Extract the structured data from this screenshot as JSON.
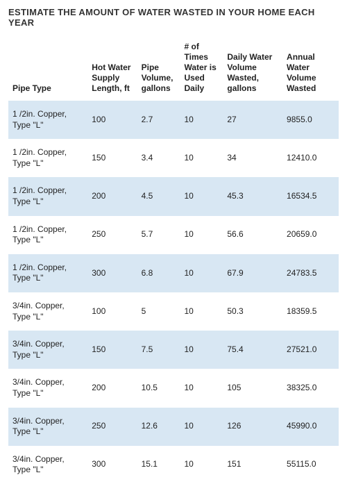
{
  "title": "ESTIMATE THE AMOUNT OF WATER WASTED IN YOUR HOME EACH YEAR",
  "table": {
    "type": "table",
    "background_color": "#ffffff",
    "band_color": "#d8e7f3",
    "text_color": "#222222",
    "header_fontsize": 12,
    "cell_fontsize": 12,
    "columns": [
      {
        "key": "pipe_type",
        "label": "Pipe Type",
        "width_pct": 24
      },
      {
        "key": "supply_len",
        "label": "Hot Water Supply Length, ft",
        "width_pct": 15
      },
      {
        "key": "pipe_vol",
        "label": "Pipe Volume, gallons",
        "width_pct": 13
      },
      {
        "key": "uses_daily",
        "label": "# of Times Water is Used Daily",
        "width_pct": 13
      },
      {
        "key": "daily_wasted",
        "label": "Daily Water Volume Wasted, gallons",
        "width_pct": 18
      },
      {
        "key": "annual_wasted",
        "label": "Annual Water Volume Wasted",
        "width_pct": 17
      }
    ],
    "rows": [
      {
        "pipe_type": "1 /2in. Copper, Type \"L\"",
        "supply_len": "100",
        "pipe_vol": "2.7",
        "uses_daily": "10",
        "daily_wasted": "27",
        "annual_wasted": "9855.0"
      },
      {
        "pipe_type": "1 /2in. Copper, Type \"L\"",
        "supply_len": "150",
        "pipe_vol": "3.4",
        "uses_daily": "10",
        "daily_wasted": "34",
        "annual_wasted": "12410.0"
      },
      {
        "pipe_type": "1 /2in. Copper, Type \"L\"",
        "supply_len": "200",
        "pipe_vol": "4.5",
        "uses_daily": "10",
        "daily_wasted": "45.3",
        "annual_wasted": "16534.5"
      },
      {
        "pipe_type": "1 /2in. Copper, Type \"L\"",
        "supply_len": "250",
        "pipe_vol": "5.7",
        "uses_daily": "10",
        "daily_wasted": "56.6",
        "annual_wasted": "20659.0"
      },
      {
        "pipe_type": "1 /2in. Copper, Type \"L\"",
        "supply_len": "300",
        "pipe_vol": "6.8",
        "uses_daily": "10",
        "daily_wasted": "67.9",
        "annual_wasted": "24783.5"
      },
      {
        "pipe_type": "3/4in. Copper, Type \"L\"",
        "supply_len": "100",
        "pipe_vol": "5",
        "uses_daily": "10",
        "daily_wasted": "50.3",
        "annual_wasted": "18359.5"
      },
      {
        "pipe_type": "3/4in. Copper, Type \"L\"",
        "supply_len": "150",
        "pipe_vol": "7.5",
        "uses_daily": "10",
        "daily_wasted": "75.4",
        "annual_wasted": "27521.0"
      },
      {
        "pipe_type": "3/4in. Copper, Type \"L\"",
        "supply_len": "200",
        "pipe_vol": "10.5",
        "uses_daily": "10",
        "daily_wasted": "105",
        "annual_wasted": "38325.0"
      },
      {
        "pipe_type": "3/4in. Copper, Type \"L\"",
        "supply_len": "250",
        "pipe_vol": "12.6",
        "uses_daily": "10",
        "daily_wasted": "126",
        "annual_wasted": "45990.0"
      },
      {
        "pipe_type": "3/4in. Copper, Type \"L\"",
        "supply_len": "300",
        "pipe_vol": "15.1",
        "uses_daily": "10",
        "daily_wasted": "151",
        "annual_wasted": "55115.0"
      }
    ]
  }
}
